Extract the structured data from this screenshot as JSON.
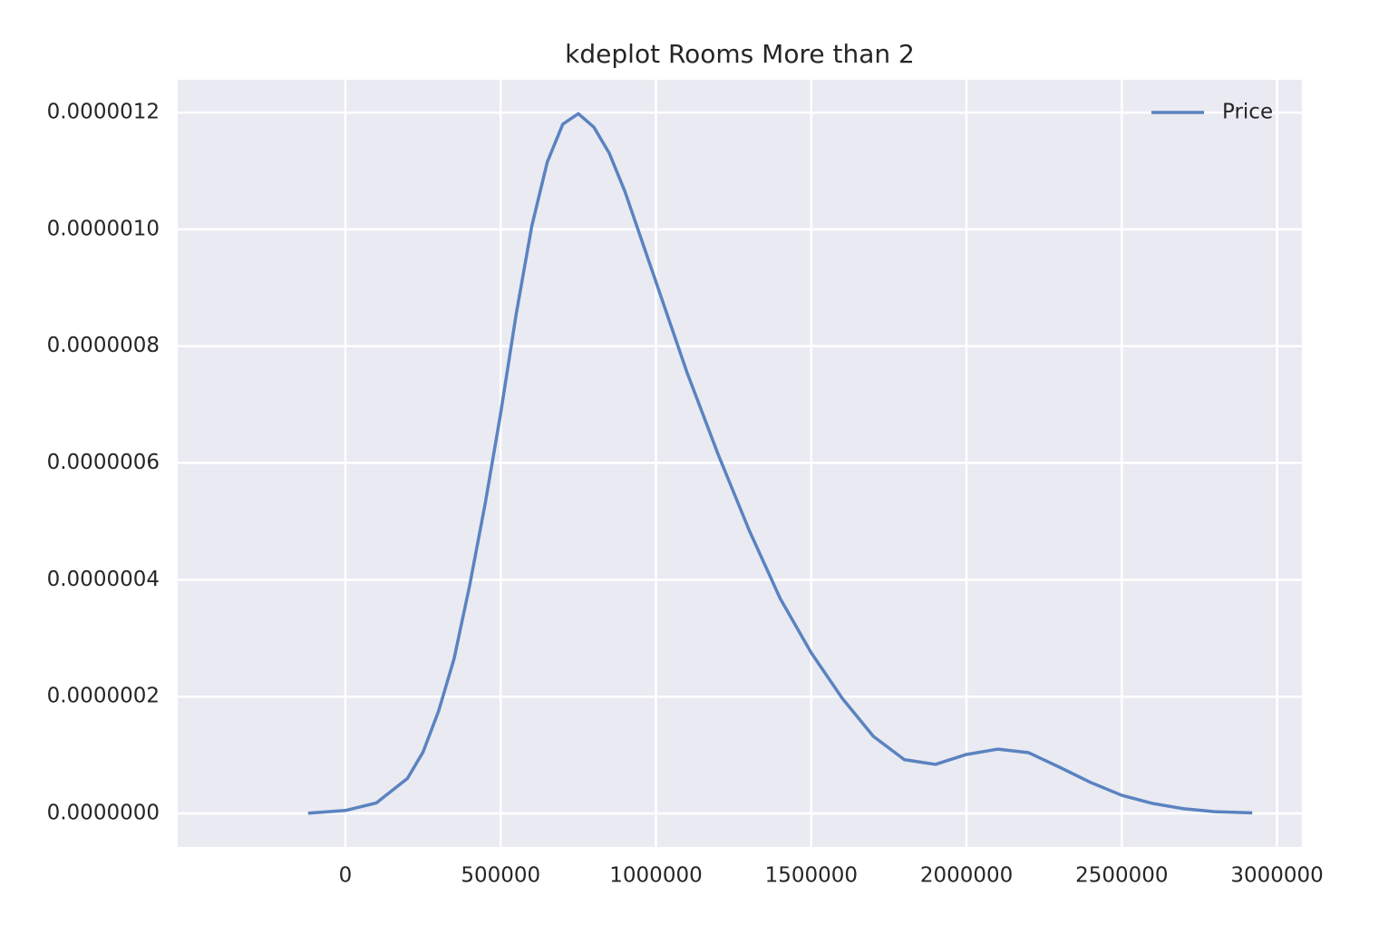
{
  "chart_data": {
    "type": "line",
    "title": "kdeplot Rooms More than 2",
    "x": [
      -120000,
      0,
      100000,
      200000,
      250000,
      300000,
      350000,
      400000,
      450000,
      500000,
      550000,
      600000,
      650000,
      700000,
      750000,
      800000,
      850000,
      900000,
      1000000,
      1100000,
      1200000,
      1300000,
      1400000,
      1500000,
      1600000,
      1700000,
      1800000,
      1900000,
      2000000,
      2100000,
      2200000,
      2300000,
      2400000,
      2500000,
      2600000,
      2700000,
      2800000,
      2920000
    ],
    "series": [
      {
        "name": "Price",
        "color": "#5a83c0",
        "values": [
          5e-10,
          5e-09,
          1.8e-08,
          6e-08,
          1.05e-07,
          1.75e-07,
          2.65e-07,
          3.9e-07,
          5.3e-07,
          6.85e-07,
          8.55e-07,
          1.005e-06,
          1.115e-06,
          1.18e-06,
          1.198e-06,
          1.175e-06,
          1.13e-06,
          1.065e-06,
          9.1e-07,
          7.55e-07,
          6.15e-07,
          4.85e-07,
          3.68e-07,
          2.75e-07,
          1.97e-07,
          1.32e-07,
          9.2e-08,
          8.4e-08,
          1.01e-07,
          1.1e-07,
          1.04e-07,
          7.9e-08,
          5.3e-08,
          3.1e-08,
          1.7e-08,
          8e-09,
          3e-09,
          1e-09
        ]
      }
    ],
    "xlim": [
      -540000,
      3080000
    ],
    "ylim": [
      -5.74e-08,
      1.256e-06
    ],
    "xticks": [
      0,
      500000,
      1000000,
      1500000,
      2000000,
      2500000,
      3000000
    ],
    "yticks": [
      {
        "value": 0,
        "label": "0.0000000"
      },
      {
        "value": 2e-07,
        "label": "0.0000002"
      },
      {
        "value": 4e-07,
        "label": "0.0000004"
      },
      {
        "value": 6e-07,
        "label": "0.0000006"
      },
      {
        "value": 8e-07,
        "label": "0.0000008"
      },
      {
        "value": 1e-06,
        "label": "0.0000010"
      },
      {
        "value": 1.2e-06,
        "label": "0.0000012"
      }
    ],
    "grid": true,
    "legend": "upper right"
  }
}
